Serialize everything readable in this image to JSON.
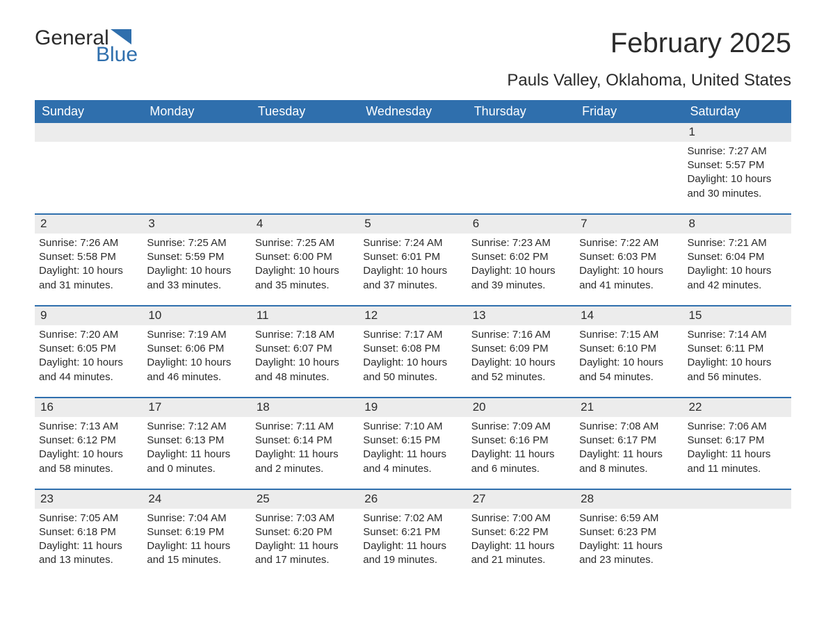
{
  "brand": {
    "word1": "General",
    "word2": "Blue",
    "accent_color": "#2f6fad"
  },
  "header": {
    "month_title": "February 2025",
    "location": "Pauls Valley, Oklahoma, United States"
  },
  "calendar": {
    "header_bg": "#2f6fad",
    "header_fg": "#ffffff",
    "daynum_bg": "#ececec",
    "week_border": "#2f6fad",
    "day_labels": [
      "Sunday",
      "Monday",
      "Tuesday",
      "Wednesday",
      "Thursday",
      "Friday",
      "Saturday"
    ],
    "weeks": [
      [
        {
          "day": null
        },
        {
          "day": null
        },
        {
          "day": null
        },
        {
          "day": null
        },
        {
          "day": null
        },
        {
          "day": null
        },
        {
          "day": "1",
          "sunrise": "Sunrise: 7:27 AM",
          "sunset": "Sunset: 5:57 PM",
          "daylight": "Daylight: 10 hours and 30 minutes."
        }
      ],
      [
        {
          "day": "2",
          "sunrise": "Sunrise: 7:26 AM",
          "sunset": "Sunset: 5:58 PM",
          "daylight": "Daylight: 10 hours and 31 minutes."
        },
        {
          "day": "3",
          "sunrise": "Sunrise: 7:25 AM",
          "sunset": "Sunset: 5:59 PM",
          "daylight": "Daylight: 10 hours and 33 minutes."
        },
        {
          "day": "4",
          "sunrise": "Sunrise: 7:25 AM",
          "sunset": "Sunset: 6:00 PM",
          "daylight": "Daylight: 10 hours and 35 minutes."
        },
        {
          "day": "5",
          "sunrise": "Sunrise: 7:24 AM",
          "sunset": "Sunset: 6:01 PM",
          "daylight": "Daylight: 10 hours and 37 minutes."
        },
        {
          "day": "6",
          "sunrise": "Sunrise: 7:23 AM",
          "sunset": "Sunset: 6:02 PM",
          "daylight": "Daylight: 10 hours and 39 minutes."
        },
        {
          "day": "7",
          "sunrise": "Sunrise: 7:22 AM",
          "sunset": "Sunset: 6:03 PM",
          "daylight": "Daylight: 10 hours and 41 minutes."
        },
        {
          "day": "8",
          "sunrise": "Sunrise: 7:21 AM",
          "sunset": "Sunset: 6:04 PM",
          "daylight": "Daylight: 10 hours and 42 minutes."
        }
      ],
      [
        {
          "day": "9",
          "sunrise": "Sunrise: 7:20 AM",
          "sunset": "Sunset: 6:05 PM",
          "daylight": "Daylight: 10 hours and 44 minutes."
        },
        {
          "day": "10",
          "sunrise": "Sunrise: 7:19 AM",
          "sunset": "Sunset: 6:06 PM",
          "daylight": "Daylight: 10 hours and 46 minutes."
        },
        {
          "day": "11",
          "sunrise": "Sunrise: 7:18 AM",
          "sunset": "Sunset: 6:07 PM",
          "daylight": "Daylight: 10 hours and 48 minutes."
        },
        {
          "day": "12",
          "sunrise": "Sunrise: 7:17 AM",
          "sunset": "Sunset: 6:08 PM",
          "daylight": "Daylight: 10 hours and 50 minutes."
        },
        {
          "day": "13",
          "sunrise": "Sunrise: 7:16 AM",
          "sunset": "Sunset: 6:09 PM",
          "daylight": "Daylight: 10 hours and 52 minutes."
        },
        {
          "day": "14",
          "sunrise": "Sunrise: 7:15 AM",
          "sunset": "Sunset: 6:10 PM",
          "daylight": "Daylight: 10 hours and 54 minutes."
        },
        {
          "day": "15",
          "sunrise": "Sunrise: 7:14 AM",
          "sunset": "Sunset: 6:11 PM",
          "daylight": "Daylight: 10 hours and 56 minutes."
        }
      ],
      [
        {
          "day": "16",
          "sunrise": "Sunrise: 7:13 AM",
          "sunset": "Sunset: 6:12 PM",
          "daylight": "Daylight: 10 hours and 58 minutes."
        },
        {
          "day": "17",
          "sunrise": "Sunrise: 7:12 AM",
          "sunset": "Sunset: 6:13 PM",
          "daylight": "Daylight: 11 hours and 0 minutes."
        },
        {
          "day": "18",
          "sunrise": "Sunrise: 7:11 AM",
          "sunset": "Sunset: 6:14 PM",
          "daylight": "Daylight: 11 hours and 2 minutes."
        },
        {
          "day": "19",
          "sunrise": "Sunrise: 7:10 AM",
          "sunset": "Sunset: 6:15 PM",
          "daylight": "Daylight: 11 hours and 4 minutes."
        },
        {
          "day": "20",
          "sunrise": "Sunrise: 7:09 AM",
          "sunset": "Sunset: 6:16 PM",
          "daylight": "Daylight: 11 hours and 6 minutes."
        },
        {
          "day": "21",
          "sunrise": "Sunrise: 7:08 AM",
          "sunset": "Sunset: 6:17 PM",
          "daylight": "Daylight: 11 hours and 8 minutes."
        },
        {
          "day": "22",
          "sunrise": "Sunrise: 7:06 AM",
          "sunset": "Sunset: 6:17 PM",
          "daylight": "Daylight: 11 hours and 11 minutes."
        }
      ],
      [
        {
          "day": "23",
          "sunrise": "Sunrise: 7:05 AM",
          "sunset": "Sunset: 6:18 PM",
          "daylight": "Daylight: 11 hours and 13 minutes."
        },
        {
          "day": "24",
          "sunrise": "Sunrise: 7:04 AM",
          "sunset": "Sunset: 6:19 PM",
          "daylight": "Daylight: 11 hours and 15 minutes."
        },
        {
          "day": "25",
          "sunrise": "Sunrise: 7:03 AM",
          "sunset": "Sunset: 6:20 PM",
          "daylight": "Daylight: 11 hours and 17 minutes."
        },
        {
          "day": "26",
          "sunrise": "Sunrise: 7:02 AM",
          "sunset": "Sunset: 6:21 PM",
          "daylight": "Daylight: 11 hours and 19 minutes."
        },
        {
          "day": "27",
          "sunrise": "Sunrise: 7:00 AM",
          "sunset": "Sunset: 6:22 PM",
          "daylight": "Daylight: 11 hours and 21 minutes."
        },
        {
          "day": "28",
          "sunrise": "Sunrise: 6:59 AM",
          "sunset": "Sunset: 6:23 PM",
          "daylight": "Daylight: 11 hours and 23 minutes."
        },
        {
          "day": null
        }
      ]
    ]
  }
}
